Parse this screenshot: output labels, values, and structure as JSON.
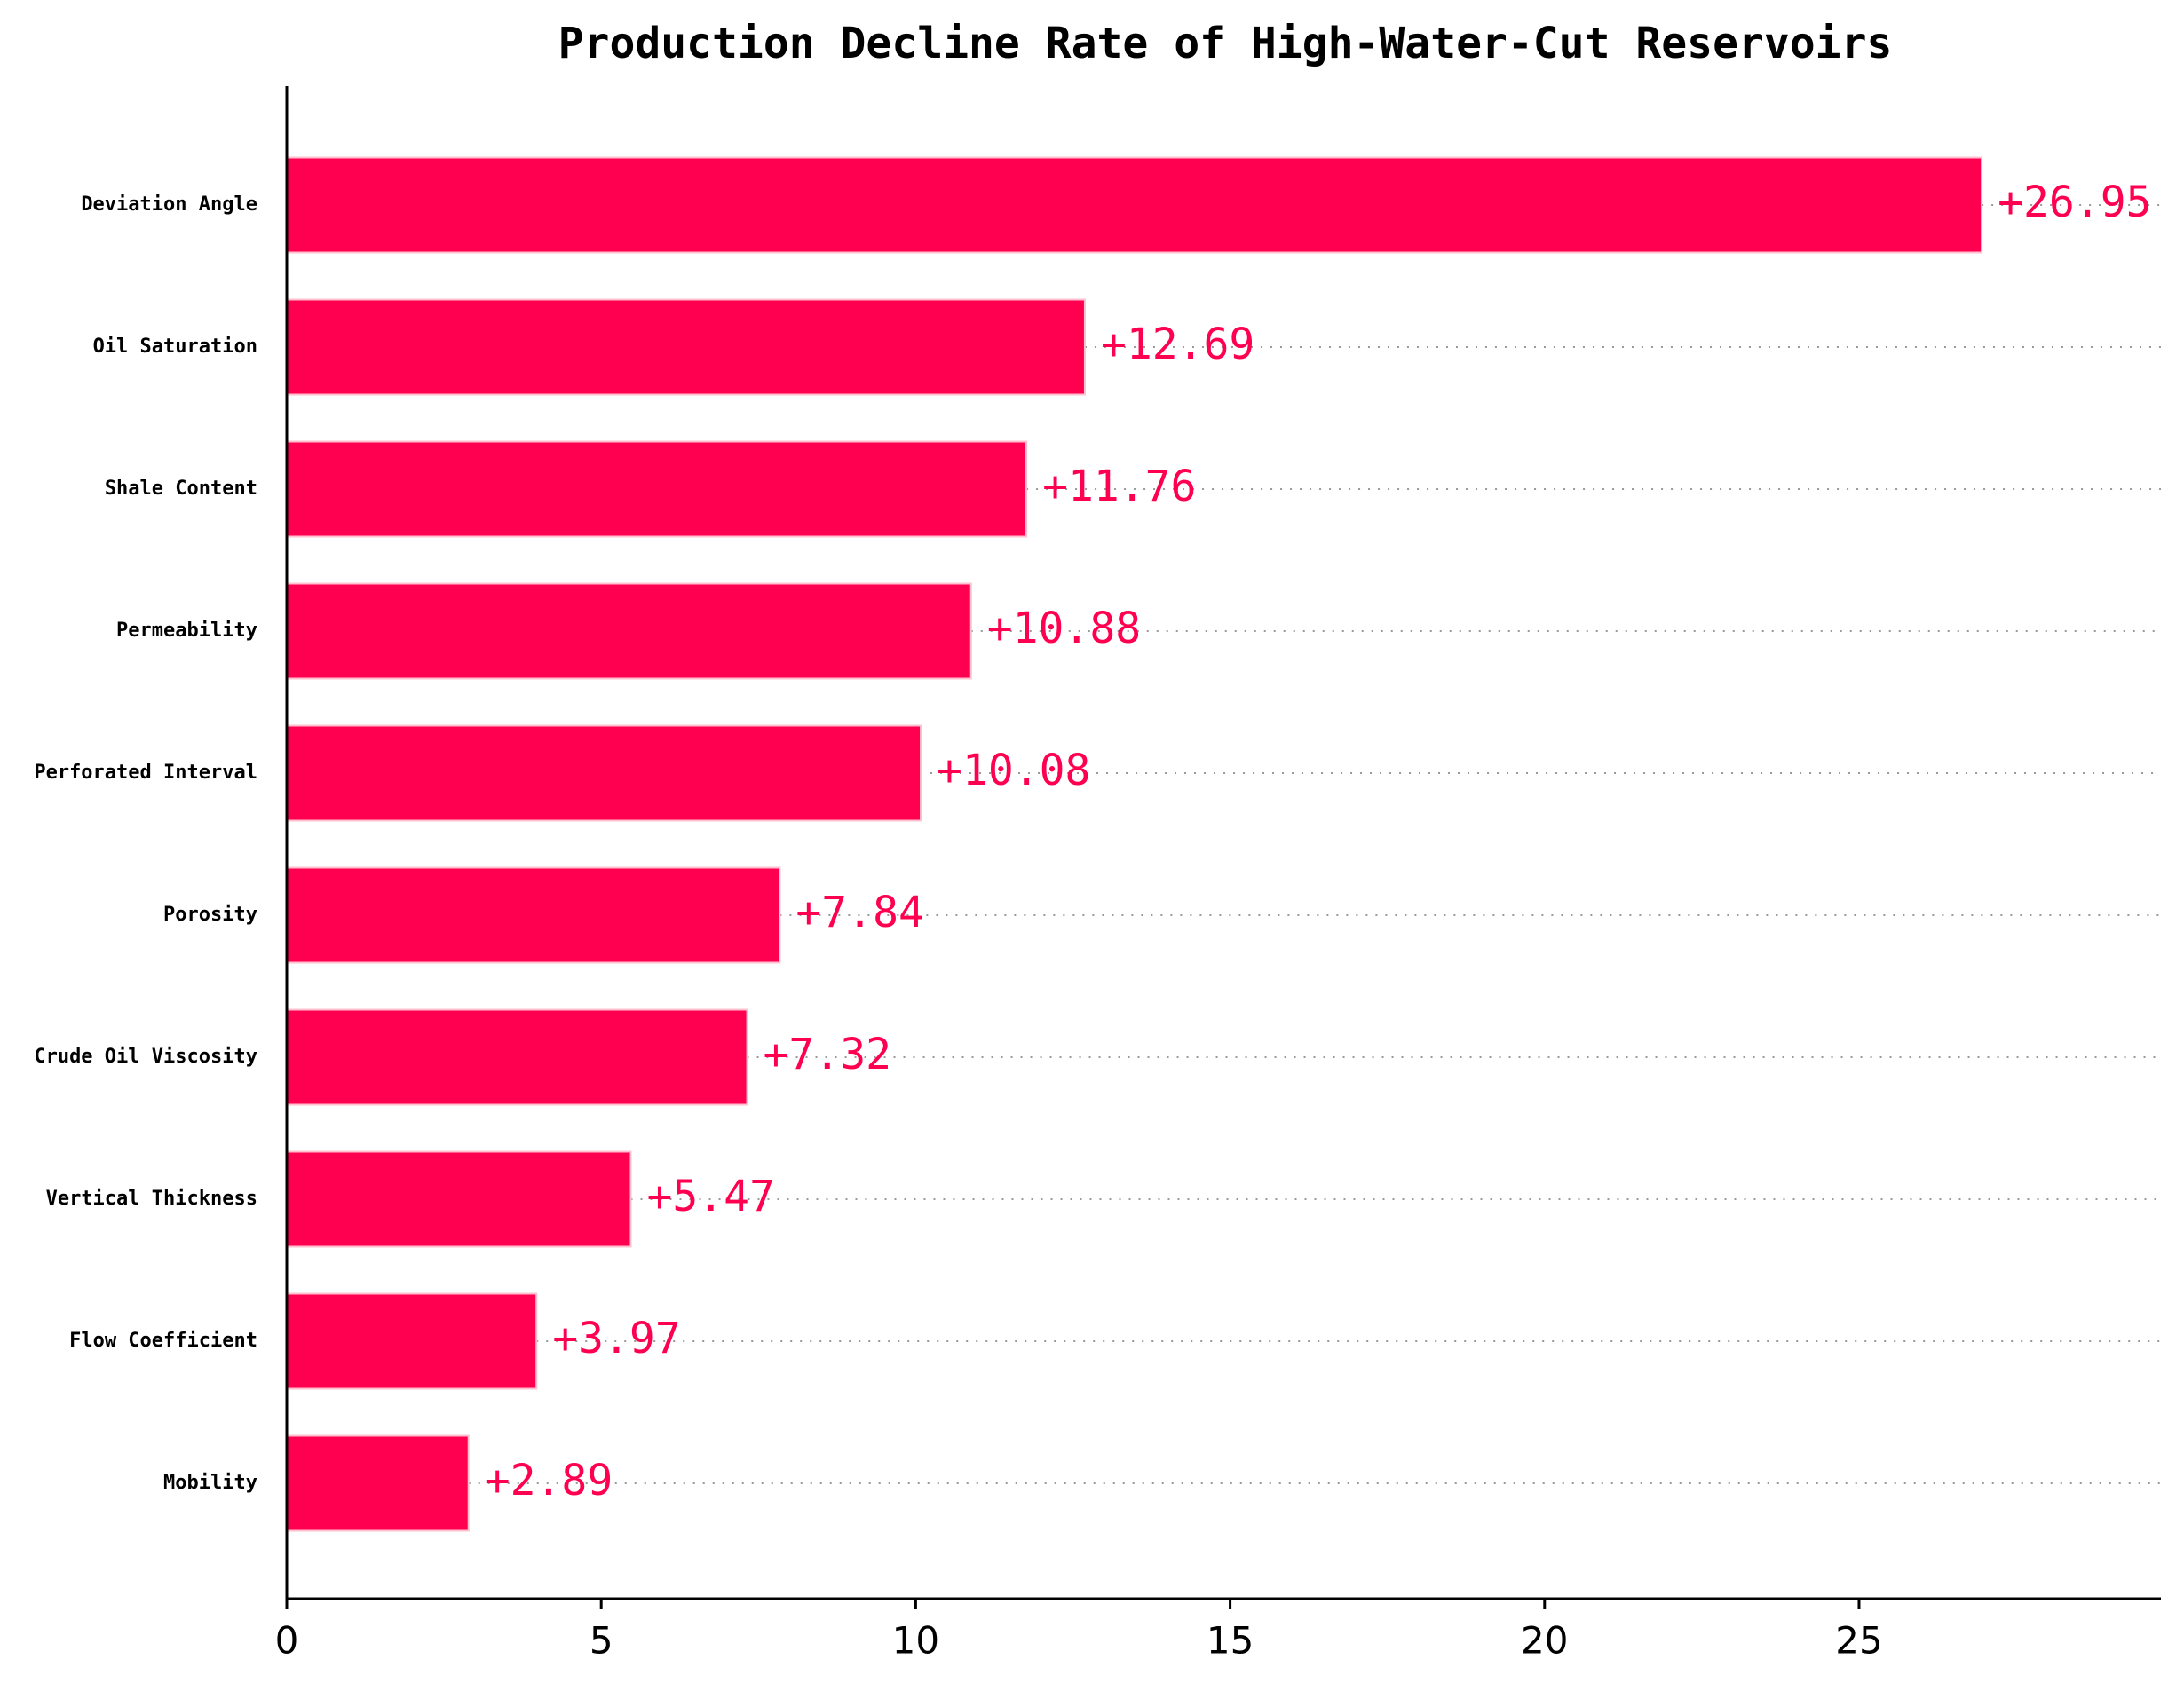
{
  "chart_data": {
    "type": "barh",
    "title": "Production Decline Rate of High-Water-Cut Reservoirs",
    "categories": [
      "Deviation Angle",
      "Oil Saturation",
      "Shale Content",
      "Permeability",
      "Perforated Interval",
      "Porosity",
      "Crude Oil Viscosity",
      "Vertical Thickness",
      "Flow Coefficient",
      "Mobility"
    ],
    "values": [
      26.95,
      12.69,
      11.76,
      10.88,
      10.08,
      7.84,
      7.32,
      5.47,
      3.97,
      2.89
    ],
    "value_labels": [
      "+26.95",
      "+12.69",
      "+11.76",
      "+10.88",
      "+10.08",
      "+7.84",
      "+7.32",
      "+5.47",
      "+3.97",
      "+2.89"
    ],
    "color": "#ff0050",
    "xlim": [
      0,
      29.8
    ],
    "xticks": [
      0,
      5,
      10,
      15,
      20,
      25
    ]
  }
}
